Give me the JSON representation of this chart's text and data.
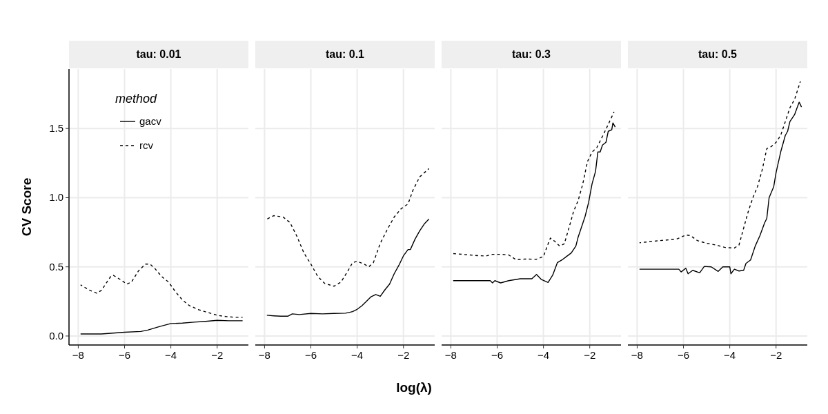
{
  "chart_data": [
    {
      "type": "line",
      "title": "tau: 0.01",
      "ylabel": "CV Score",
      "legend_title": "method",
      "legend": "top left",
      "grid": true,
      "xlim": [
        -8.4,
        -0.65
      ],
      "ylim": [
        -0.065,
        1.93
      ],
      "xticks": [
        {
          "value": -8,
          "label": "−8"
        },
        {
          "value": -6,
          "label": "−6"
        },
        {
          "value": -4,
          "label": "−4"
        },
        {
          "value": -2,
          "label": "−2"
        }
      ],
      "yticks": [
        {
          "value": 0,
          "label": "0.0"
        },
        {
          "value": 0.5,
          "label": "0.5"
        },
        {
          "value": 1,
          "label": "1.0"
        },
        {
          "value": 1.5,
          "label": "1.5"
        }
      ],
      "series": [
        {
          "name": "gacv",
          "color": "#000000",
          "line_style": "solid",
          "x": [
            -7.9,
            -7,
            -6,
            -5.3,
            -5,
            -4.5,
            -4,
            -3.5,
            -3,
            -2.5,
            -2,
            -1.5,
            -0.9
          ],
          "values": [
            0.015,
            0.015,
            0.027,
            0.033,
            0.043,
            0.068,
            0.09,
            0.093,
            0.1,
            0.106,
            0.113,
            0.11,
            0.11
          ]
        },
        {
          "name": "rcv",
          "color": "#000000",
          "line_style": "dashed",
          "x": [
            -7.9,
            -7.5,
            -7.2,
            -7,
            -6.6,
            -6.5,
            -6.2,
            -5.9,
            -5.7,
            -5.4,
            -5.1,
            -4.9,
            -4.7,
            -4.4,
            -4.1,
            -3.8,
            -3.5,
            -3.2,
            -2.8,
            -2.4,
            -2,
            -1.6,
            -1.2,
            -0.9
          ],
          "values": [
            0.37,
            0.33,
            0.31,
            0.33,
            0.43,
            0.44,
            0.41,
            0.375,
            0.39,
            0.47,
            0.52,
            0.52,
            0.49,
            0.43,
            0.39,
            0.32,
            0.26,
            0.22,
            0.19,
            0.17,
            0.15,
            0.14,
            0.135,
            0.135
          ]
        }
      ]
    },
    {
      "type": "line",
      "title": "tau: 0.1",
      "xlabel": "log(λ)",
      "tick_labels": "x",
      "grid": true,
      "xlim": [
        -8.4,
        -0.65
      ],
      "ylim": [
        -0.065,
        1.93
      ],
      "xticks": [
        {
          "value": -8,
          "label": "−8"
        },
        {
          "value": -6,
          "label": "−6"
        },
        {
          "value": -4,
          "label": "−4"
        },
        {
          "value": -2,
          "label": "−2"
        }
      ],
      "yticks": [
        0,
        0.5,
        1,
        1.5
      ],
      "series": [
        {
          "color": "#000000",
          "line_style": "solid",
          "x": [
            -7.9,
            -7.6,
            -7.3,
            -7,
            -6.8,
            -6.5,
            -6,
            -5.5,
            -5,
            -4.5,
            -4.2,
            -4,
            -3.8,
            -3.6,
            -3.4,
            -3.2,
            -3,
            -2.8,
            -2.6,
            -2.4,
            -2.2,
            -2,
            -1.8,
            -1.7,
            -1.5,
            -1.3,
            -1.1,
            -0.9
          ],
          "values": [
            0.15,
            0.146,
            0.143,
            0.143,
            0.16,
            0.155,
            0.163,
            0.16,
            0.163,
            0.165,
            0.176,
            0.193,
            0.218,
            0.25,
            0.284,
            0.3,
            0.287,
            0.334,
            0.375,
            0.45,
            0.51,
            0.58,
            0.625,
            0.625,
            0.7,
            0.76,
            0.81,
            0.845
          ]
        },
        {
          "color": "#000000",
          "line_style": "dashed",
          "x": [
            -7.9,
            -7.6,
            -7.2,
            -6.9,
            -6.6,
            -6.3,
            -6,
            -5.7,
            -5.4,
            -5,
            -4.7,
            -4.4,
            -4.2,
            -4,
            -3.7,
            -3.5,
            -3.3,
            -3,
            -2.7,
            -2.4,
            -2.1,
            -1.8,
            -1.6,
            -1.3,
            -1.1,
            -0.9
          ],
          "values": [
            0.845,
            0.87,
            0.86,
            0.82,
            0.72,
            0.6,
            0.52,
            0.43,
            0.38,
            0.36,
            0.39,
            0.47,
            0.53,
            0.54,
            0.52,
            0.5,
            0.53,
            0.67,
            0.77,
            0.86,
            0.92,
            0.955,
            1.05,
            1.15,
            1.18,
            1.21
          ]
        }
      ]
    },
    {
      "type": "line",
      "title": "tau: 0.3",
      "tick_labels": "x",
      "grid": true,
      "xlim": [
        -8.4,
        -0.65
      ],
      "ylim": [
        -0.065,
        1.93
      ],
      "xticks": [
        {
          "value": -8,
          "label": "−8"
        },
        {
          "value": -6,
          "label": "−6"
        },
        {
          "value": -4,
          "label": "−4"
        },
        {
          "value": -2,
          "label": "−2"
        }
      ],
      "yticks": [
        0,
        0.5,
        1,
        1.5
      ],
      "series": [
        {
          "color": "#000000",
          "line_style": "solid",
          "x": [
            -7.9,
            -6.3,
            -6.2,
            -6.1,
            -5.85,
            -5.5,
            -5,
            -4.5,
            -4.3,
            -4.1,
            -3.8,
            -3.6,
            -3.4,
            -3.2,
            -3,
            -2.8,
            -2.6,
            -2.5,
            -2.35,
            -2.2,
            -2.05,
            -1.9,
            -1.75,
            -1.65,
            -1.55,
            -1.45,
            -1.3,
            -1.2,
            -1.05,
            -1,
            -0.9
          ],
          "values": [
            0.4,
            0.4,
            0.384,
            0.4,
            0.384,
            0.4,
            0.414,
            0.414,
            0.445,
            0.41,
            0.387,
            0.44,
            0.53,
            0.55,
            0.575,
            0.6,
            0.65,
            0.716,
            0.79,
            0.865,
            0.965,
            1.1,
            1.19,
            1.33,
            1.33,
            1.38,
            1.4,
            1.48,
            1.49,
            1.54,
            1.51
          ]
        },
        {
          "color": "#000000",
          "line_style": "dashed",
          "x": [
            -7.9,
            -7,
            -6.5,
            -6.2,
            -5.8,
            -5.5,
            -5.2,
            -4.8,
            -4.3,
            -4,
            -3.8,
            -3.7,
            -3.5,
            -3.3,
            -3.1,
            -2.9,
            -2.7,
            -2.5,
            -2.3,
            -2.1,
            -1.9,
            -1.7,
            -1.4,
            -1.2,
            -0.95
          ],
          "values": [
            0.596,
            0.583,
            0.578,
            0.59,
            0.59,
            0.586,
            0.553,
            0.556,
            0.555,
            0.575,
            0.666,
            0.708,
            0.683,
            0.65,
            0.666,
            0.78,
            0.9,
            0.98,
            1.1,
            1.26,
            1.33,
            1.36,
            1.46,
            1.53,
            1.62
          ]
        }
      ]
    },
    {
      "type": "line",
      "title": "tau: 0.5",
      "tick_labels": "x",
      "grid": true,
      "xlim": [
        -8.4,
        -0.65
      ],
      "ylim": [
        -0.065,
        1.93
      ],
      "xticks": [
        {
          "value": -8,
          "label": "−8"
        },
        {
          "value": -6,
          "label": "−6"
        },
        {
          "value": -4,
          "label": "−4"
        },
        {
          "value": -2,
          "label": "−2"
        }
      ],
      "yticks": [
        0,
        0.5,
        1,
        1.5
      ],
      "series": [
        {
          "color": "#000000",
          "line_style": "solid",
          "x": [
            -7.9,
            -6.2,
            -6.1,
            -5.9,
            -5.8,
            -5.6,
            -5.3,
            -5.1,
            -4.8,
            -4.5,
            -4.3,
            -4,
            -3.95,
            -3.8,
            -3.6,
            -3.4,
            -3.3,
            -3.1,
            -2.9,
            -2.7,
            -2.5,
            -2.4,
            -2.3,
            -2.1,
            -2,
            -1.8,
            -1.6,
            -1.5,
            -1.4,
            -1.2,
            -1.1,
            -1,
            -0.9
          ],
          "values": [
            0.483,
            0.483,
            0.463,
            0.49,
            0.45,
            0.475,
            0.457,
            0.503,
            0.5,
            0.467,
            0.5,
            0.5,
            0.45,
            0.483,
            0.47,
            0.475,
            0.525,
            0.55,
            0.65,
            0.724,
            0.815,
            0.85,
            1.0,
            1.08,
            1.18,
            1.33,
            1.45,
            1.48,
            1.55,
            1.6,
            1.646,
            1.69,
            1.655
          ]
        },
        {
          "color": "#000000",
          "line_style": "dashed",
          "x": [
            -7.9,
            -7,
            -6.3,
            -5.9,
            -5.7,
            -5.4,
            -5,
            -4.6,
            -4.2,
            -3.8,
            -3.6,
            -3.4,
            -3.2,
            -3,
            -2.8,
            -2.6,
            -2.4,
            -2.2,
            -2,
            -1.8,
            -1.6,
            -1.4,
            -1.2,
            -0.95
          ],
          "values": [
            0.674,
            0.69,
            0.7,
            0.73,
            0.726,
            0.69,
            0.67,
            0.658,
            0.64,
            0.636,
            0.658,
            0.78,
            0.9,
            1.0,
            1.08,
            1.2,
            1.355,
            1.37,
            1.4,
            1.45,
            1.55,
            1.65,
            1.71,
            1.84
          ]
        }
      ]
    }
  ]
}
